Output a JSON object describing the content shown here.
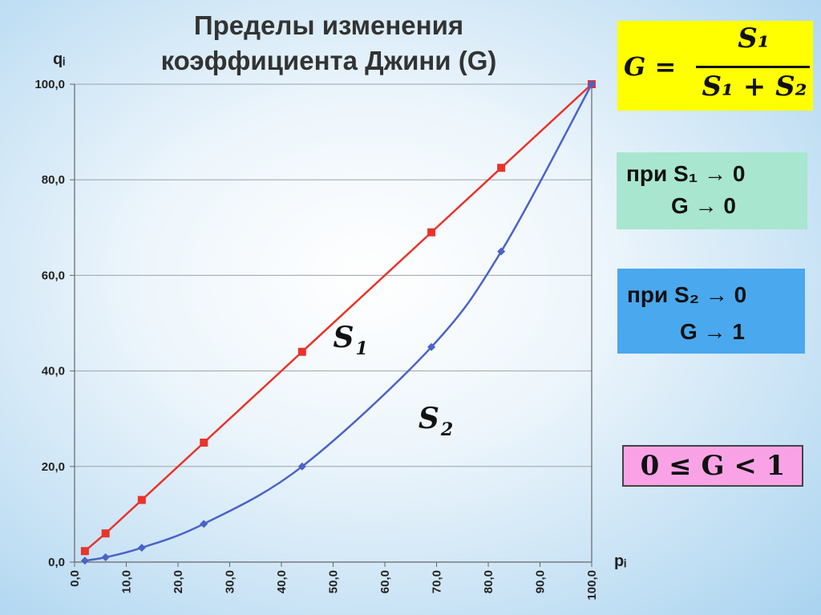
{
  "slide": {
    "title_line1": "Пределы изменения",
    "title_line2": "коэффициента Джини (G)"
  },
  "formula": {
    "lhs": "G =",
    "numerator": "S₁",
    "denominator": "S₁ + S₂"
  },
  "condition_s1": {
    "line1": "при S₁ → 0",
    "line2": "G → 0",
    "color": "#a8e6cf"
  },
  "condition_s2": {
    "line1": "при S₂ → 0",
    "line2": "G → 1",
    "color": "#4aa8ee"
  },
  "inequality": {
    "text": "0 ≤ G  < 1",
    "color": "#f9a3e6"
  },
  "chart_data": {
    "type": "line",
    "xlabel": "pᵢ",
    "ylabel": "qᵢ",
    "xlim": [
      0,
      100
    ],
    "ylim": [
      0,
      100
    ],
    "x_ticks": [
      "0,0",
      "10,0",
      "20,0",
      "30,0",
      "40,0",
      "50,0",
      "60,0",
      "70,0",
      "80,0",
      "90,0",
      "100,0"
    ],
    "y_ticks": [
      "0,0",
      "20,0",
      "40,0",
      "60,0",
      "80,0",
      "100,0"
    ],
    "grid": "horizontal",
    "area_labels": [
      {
        "name": "S",
        "sub": "1",
        "x": 50,
        "y": 45
      },
      {
        "name": "S",
        "sub": "2",
        "x": 66.5,
        "y": 28
      }
    ],
    "series": [
      {
        "color": "#e8332a",
        "marker": "square",
        "x": [
          2.0,
          6.0,
          13.0,
          25.0,
          44.0,
          69.0,
          82.5,
          100.0
        ],
        "y": [
          2.3,
          6.0,
          13.0,
          25.0,
          44.0,
          69.0,
          82.5,
          100.0
        ]
      },
      {
        "color": "#4a63c8",
        "marker": "diamond",
        "x": [
          2.0,
          6.0,
          13.0,
          25.0,
          44.0,
          69.0,
          82.5,
          100.0
        ],
        "y": [
          0.3,
          1.0,
          3.0,
          8.0,
          20.0,
          45.0,
          65.0,
          100.0
        ]
      }
    ]
  }
}
